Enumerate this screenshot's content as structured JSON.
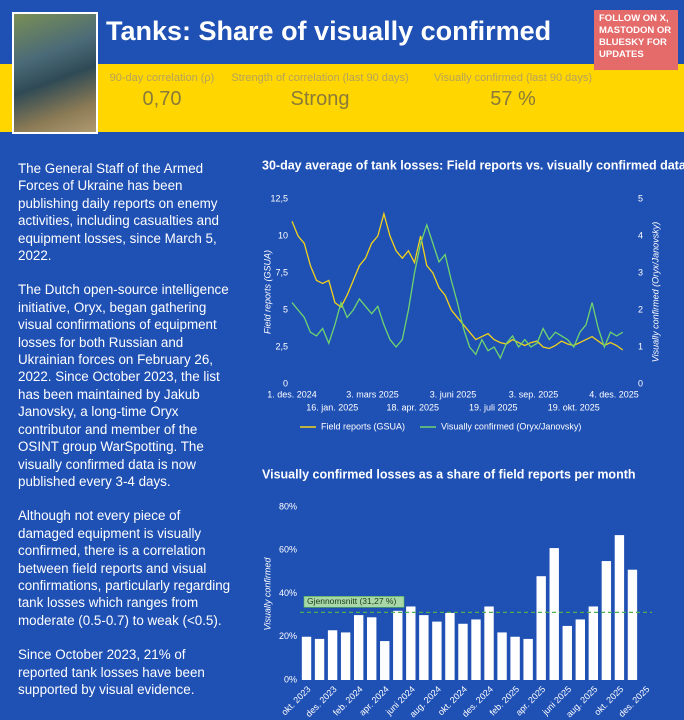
{
  "header": {
    "title": "Tanks: Share of visually confirmed",
    "follow": "FOLLOW ON X, MASTODON OR BLUESKY FOR UPDATES"
  },
  "stats": [
    {
      "label": "90-day correlation (ρ)",
      "value": "0,70"
    },
    {
      "label": "Strength of correlation (last 90 days)",
      "value": "Strong"
    },
    {
      "label": "Visually confirmed (last 90 days)",
      "value": "57 %"
    }
  ],
  "paragraphs": [
    "The General Staff of the Armed Forces of Ukraine has been publishing daily reports on enemy activities, including casualties and equipment losses, since March 5, 2022.",
    "The Dutch open-source intelligence initiative, Oryx, began gathering visual confirmations of equipment losses for both Russian and Ukrainian forces on February 26, 2022. Since October 2023, the list has been maintained by Jakub Janovsky, a long-time Oryx contributor and member of the OSINT group WarSpotting. The visually confirmed data is now published every 3-4 days.",
    "Although not every piece of damaged equipment is visually confirmed, there is a correlation between field reports and visual confirmations, particularly regarding tank losses which ranges from moderate (0.5-0.7) to weak (<0.5).",
    "Since October 2023, 21% of reported tank losses have been supported by visual evidence."
  ],
  "chart_data": [
    {
      "type": "line",
      "title": "30-day average of tank losses: Field reports vs. visually confirmed data",
      "y_label": "Field reports (GSUA)",
      "y2_label": "Visually confirmed (Oryx/Janovsky)",
      "x": [
        "2024-12-01",
        "2024-12-08",
        "2024-12-15",
        "2024-12-22",
        "2024-12-29",
        "2025-01-05",
        "2025-01-12",
        "2025-01-19",
        "2025-01-26",
        "2025-02-02",
        "2025-02-09",
        "2025-02-16",
        "2025-02-23",
        "2025-03-02",
        "2025-03-09",
        "2025-03-16",
        "2025-03-23",
        "2025-03-30",
        "2025-04-06",
        "2025-04-13",
        "2025-04-20",
        "2025-04-27",
        "2025-05-04",
        "2025-05-11",
        "2025-05-18",
        "2025-05-25",
        "2025-06-01",
        "2025-06-08",
        "2025-06-15",
        "2025-06-22",
        "2025-06-29",
        "2025-07-06",
        "2025-07-13",
        "2025-07-20",
        "2025-07-27",
        "2025-08-03",
        "2025-08-10",
        "2025-08-17",
        "2025-08-24",
        "2025-08-31",
        "2025-09-07",
        "2025-09-14",
        "2025-09-21",
        "2025-09-28",
        "2025-10-05",
        "2025-10-12",
        "2025-10-19",
        "2025-10-26",
        "2025-11-02",
        "2025-11-09",
        "2025-11-16",
        "2025-11-23",
        "2025-11-30",
        "2025-12-07",
        "2025-12-14"
      ],
      "series": [
        {
          "name": "Field reports (GSUA)",
          "color": "#f2d21b",
          "values": [
            11,
            10,
            9.5,
            8,
            7,
            6.8,
            7,
            5.5,
            5.2,
            6,
            7,
            8,
            8.5,
            9.5,
            10,
            11.5,
            10,
            9,
            8.5,
            9,
            8.2,
            10,
            8,
            7.5,
            6.5,
            6,
            5,
            4.5,
            4,
            3.5,
            3,
            3.2,
            3.4,
            3,
            2.8,
            2.7,
            3,
            2.8,
            2.6,
            2.8,
            2.9,
            2.5,
            2.4,
            2.6,
            2.9,
            2.7,
            2.6,
            2.8,
            3,
            3.2,
            2.9,
            2.6,
            2.8,
            2.6,
            2.3
          ]
        },
        {
          "name": "Visually confirmed (Oryx/Janovsky)",
          "color": "#6fd46f",
          "axis": "y2",
          "values": [
            2.2,
            2,
            1.8,
            1.4,
            1.3,
            1.5,
            1.1,
            1.6,
            2.2,
            1.8,
            2,
            2.3,
            2.1,
            1.9,
            2.1,
            1.6,
            1.2,
            1,
            1.2,
            2,
            3,
            3.8,
            4.3,
            3.8,
            3.3,
            3.5,
            2.8,
            2.2,
            1.5,
            1,
            0.8,
            1.2,
            0.9,
            1,
            0.7,
            1.1,
            1.3,
            1,
            1.2,
            1,
            1.1,
            1.5,
            1.2,
            1.4,
            1.3,
            1.2,
            1,
            1.4,
            1.6,
            2.2,
            1.5,
            1,
            1.4,
            1.3,
            1.4
          ]
        }
      ],
      "xlim": [
        "2024-12-01",
        "2025-12-20"
      ],
      "xticks": [
        {
          "value": "2024-12-01",
          "label": "1. des. 2024"
        },
        {
          "value": "2025-01-16",
          "label": "16. jan. 2025"
        },
        {
          "value": "2025-03-03",
          "label": "3. mars 2025"
        },
        {
          "value": "2025-04-18",
          "label": "18. apr. 2025"
        },
        {
          "value": "2025-06-03",
          "label": "3. juni 2025"
        },
        {
          "value": "2025-07-19",
          "label": "19. juli 2025"
        },
        {
          "value": "2025-09-03",
          "label": "3. sep. 2025"
        },
        {
          "value": "2025-10-19",
          "label": "19. okt. 2025"
        },
        {
          "value": "2025-12-04",
          "label": "4. des. 2025"
        }
      ],
      "ylim": [
        0,
        12.5
      ],
      "yticks": [
        0,
        {
          "value": 2.5,
          "label": "2,5"
        },
        5,
        {
          "value": 7.5,
          "label": "7,5"
        },
        10,
        {
          "value": 12.5,
          "label": "12,5"
        }
      ],
      "y2lim": [
        0,
        5
      ],
      "y2ticks": [
        0,
        1,
        2,
        3,
        4,
        5
      ]
    },
    {
      "type": "bar",
      "title": "Visually confirmed losses as a share of field reports per month",
      "y_label": "Visually confirmed",
      "color": "#ffffff",
      "categories": [
        "okt. 2023",
        null,
        "des. 2023",
        null,
        "feb. 2024",
        null,
        "apr. 2024",
        null,
        "juni 2024",
        null,
        "aug. 2024",
        null,
        "okt. 2024",
        null,
        "des. 2024",
        null,
        "feb. 2025",
        null,
        "apr. 2025",
        null,
        "juni 2025",
        null,
        "aug. 2025",
        null,
        "okt. 2025",
        null,
        "des. 2025"
      ],
      "values": [
        20,
        19,
        23,
        22,
        30,
        29,
        18,
        32,
        34,
        30,
        27,
        31,
        26,
        28,
        34,
        22,
        20,
        19,
        48,
        61,
        25,
        28,
        34,
        55,
        67,
        51,
        null
      ],
      "ylim": [
        0,
        80
      ],
      "yticks": [
        {
          "value": 0,
          "label": "0%"
        },
        {
          "value": 20,
          "label": "20%"
        },
        {
          "value": 40,
          "label": "40%"
        },
        {
          "value": 60,
          "label": "60%"
        },
        {
          "value": 80,
          "label": "80%"
        }
      ],
      "average": {
        "value": 31.27,
        "label": "Gjennomsnitt (31,27 %)",
        "color": "#4caf50"
      }
    }
  ]
}
